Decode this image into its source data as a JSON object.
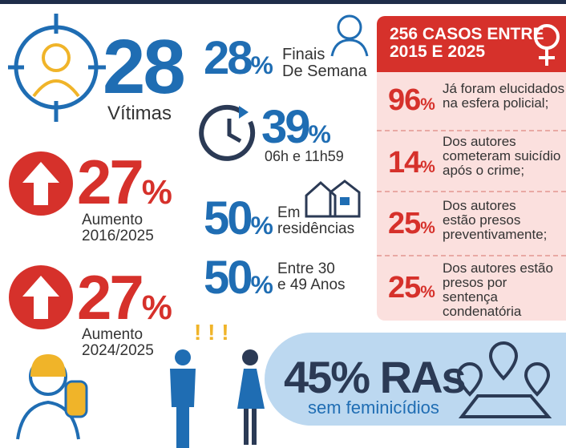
{
  "victims": {
    "number": "28",
    "label": "Vítimas"
  },
  "increases": [
    {
      "number": "27",
      "unit": "%",
      "label": "Aumento\n2016/2025"
    },
    {
      "number": "27",
      "unit": "%",
      "label": "Aumento\n2024/2025"
    }
  ],
  "stats": [
    {
      "number": "28",
      "unit": "%",
      "label": "Finais\nDe Semana"
    },
    {
      "number": "39",
      "unit": "%",
      "label": "06h e 11h59"
    },
    {
      "number": "50",
      "unit": "%",
      "label": "Em\nresidências"
    },
    {
      "number": "50",
      "unit": "%",
      "label": "Entre 30\ne 49 Anos"
    }
  ],
  "regions": {
    "headline": "45% RAs",
    "label": "sem feminicídios"
  },
  "cases": {
    "title": "256 CASOS ENTRE\n2015 E 2025",
    "rows": [
      {
        "number": "96",
        "unit": "%",
        "text": "Já foram elucidados\nna esfera policial;"
      },
      {
        "number": "14",
        "unit": "%",
        "text": "Dos autores\ncometeram suicídio\napós o crime;"
      },
      {
        "number": "25",
        "unit": "%",
        "text": "Dos autores\nestão presos\npreventivamente;"
      },
      {
        "number": "25",
        "unit": "%",
        "text": "Dos autores estão\npresos por sentença\ncondenatória"
      }
    ]
  }
}
